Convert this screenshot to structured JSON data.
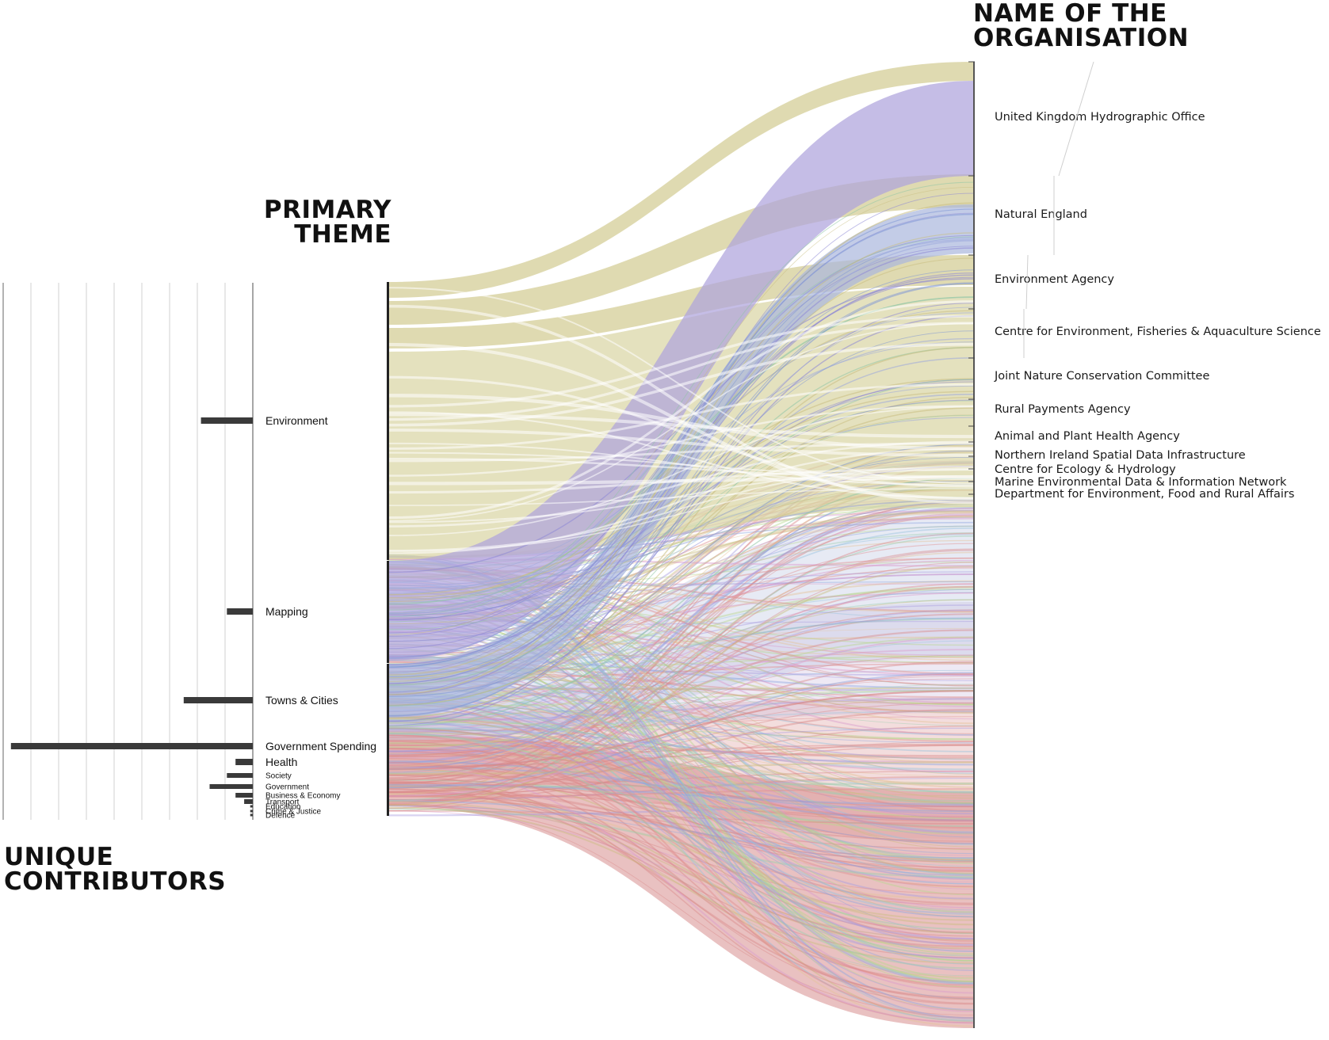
{
  "headings": {
    "organisation": [
      "NAME OF THE",
      "ORGANISATION"
    ],
    "primary_theme": [
      "PRIMARY",
      "THEME"
    ],
    "unique_contributors": [
      "UNIQUE",
      "CONTRIBUTORS"
    ]
  },
  "themes": [
    {
      "name": "Environment",
      "contributors": 6,
      "color": "#d9d4a3"
    },
    {
      "name": "Mapping",
      "contributors": 3,
      "color": "#aea4dc"
    },
    {
      "name": "Towns & Cities",
      "contributors": 8,
      "color": "#a9b7dd"
    },
    {
      "name": "Government Spending",
      "contributors": 28,
      "color": "#d78e8e"
    },
    {
      "name": "Health",
      "contributors": 2,
      "color": "#b9dcc8"
    },
    {
      "name": "Society",
      "contributors": 3,
      "color": "#9ed8c9"
    },
    {
      "name": "Government",
      "contributors": 5,
      "color": "#b6d79a"
    },
    {
      "name": "Business & Economy",
      "contributors": 2,
      "color": "#e8b98d"
    },
    {
      "name": "Transport",
      "contributors": 1,
      "color": "#c6a7d8"
    },
    {
      "name": "Education",
      "contributors": 0.3,
      "color": "#9fcde0"
    },
    {
      "name": "Crime & Justice",
      "contributors": 0.3,
      "color": "#d9a2c6"
    },
    {
      "name": "Defence",
      "contributors": 0.3,
      "color": "#a8c9a5"
    }
  ],
  "organisations": [
    "United Kingdom Hydrographic Office",
    "Natural England",
    "Environment Agency",
    "Centre for Environment, Fisheries & Aquaculture Science",
    "Joint Nature Conservation Committee",
    "Rural Payments Agency",
    "Animal and Plant Health Agency",
    "Northern Ireland Spatial Data Infrastructure",
    "Centre for Ecology & Hydrology",
    "Marine Environmental Data & Information Network",
    "Department for Environment, Food and Rural Affairs"
  ],
  "colors": {
    "environment": "#d9d4a3",
    "mapping": "#aea4dc",
    "towns": "#a9b7dd",
    "spending": "#d78e8e",
    "bar": "#3a3a3a",
    "axis": "#222222",
    "grid": "#d2d2d2"
  }
}
